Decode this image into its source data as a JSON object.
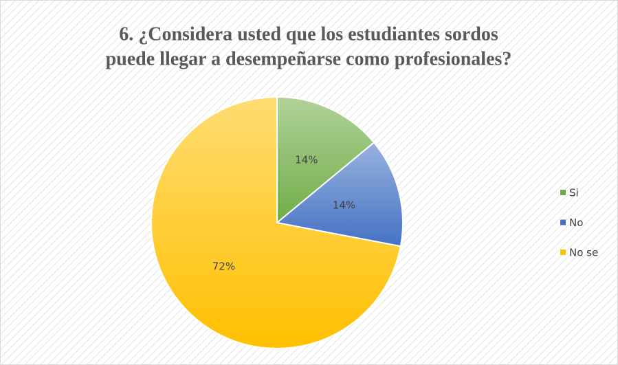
{
  "chart_data": {
    "type": "pie",
    "title": [
      "6. ¿Considera usted que los estudiantes sordos",
      "puede llegar a desempeñarse como profesionales?"
    ],
    "categories": [
      "Si",
      "No",
      "No se"
    ],
    "values": [
      14,
      14,
      72
    ],
    "value_labels": [
      "14%",
      "14%",
      "72%"
    ],
    "colors": [
      "#70ad47",
      "#4472c4",
      "#ffc000"
    ],
    "legend": "right"
  }
}
